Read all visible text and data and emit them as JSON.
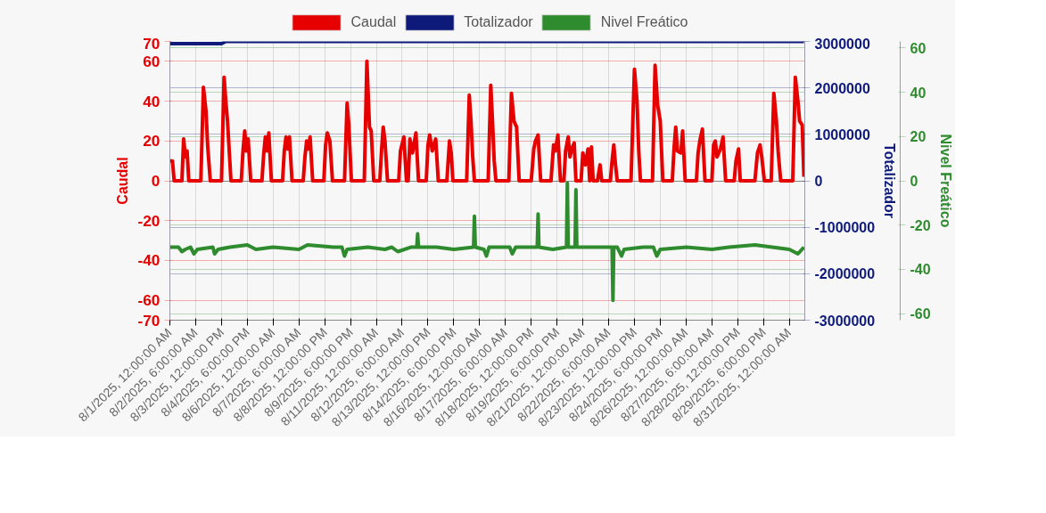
{
  "chart_data": {
    "type": "line",
    "legend": "top",
    "grid": true,
    "marker": "none",
    "line_style": "solid",
    "ylabel": "Caudal",
    "y2label": "Totalizador",
    "y3label": "Nivel Freático",
    "xlim": [
      "2025-08-01T00:00",
      "2025-08-31T18:00"
    ],
    "xticks": [
      {
        "value": "2025-08-01T00:00",
        "label": "8/1/2025, 12:00:00 AM"
      },
      {
        "value": "2025-08-02T06:00",
        "label": "8/2/2025, 6:00:00 AM"
      },
      {
        "value": "2025-08-03T12:00",
        "label": "8/3/2025, 12:00:00 PM"
      },
      {
        "value": "2025-08-04T18:00",
        "label": "8/4/2025, 6:00:00 PM"
      },
      {
        "value": "2025-08-06T00:00",
        "label": "8/6/2025, 12:00:00 AM"
      },
      {
        "value": "2025-08-07T06:00",
        "label": "8/7/2025, 6:00:00 AM"
      },
      {
        "value": "2025-08-08T12:00",
        "label": "8/8/2025, 12:00:00 PM"
      },
      {
        "value": "2025-08-09T18:00",
        "label": "8/9/2025, 6:00:00 PM"
      },
      {
        "value": "2025-08-11T00:00",
        "label": "8/11/2025, 12:00:00 AM"
      },
      {
        "value": "2025-08-12T06:00",
        "label": "8/12/2025, 6:00:00 AM"
      },
      {
        "value": "2025-08-13T12:00",
        "label": "8/13/2025, 12:00:00 PM"
      },
      {
        "value": "2025-08-14T18:00",
        "label": "8/14/2025, 6:00:00 PM"
      },
      {
        "value": "2025-08-16T00:00",
        "label": "8/16/2025, 12:00:00 AM"
      },
      {
        "value": "2025-08-17T06:00",
        "label": "8/17/2025, 6:00:00 AM"
      },
      {
        "value": "2025-08-18T12:00",
        "label": "8/18/2025, 12:00:00 PM"
      },
      {
        "value": "2025-08-19T18:00",
        "label": "8/19/2025, 6:00:00 PM"
      },
      {
        "value": "2025-08-21T00:00",
        "label": "8/21/2025, 12:00:00 AM"
      },
      {
        "value": "2025-08-22T06:00",
        "label": "8/22/2025, 6:00:00 AM"
      },
      {
        "value": "2025-08-23T12:00",
        "label": "8/23/2025, 12:00:00 PM"
      },
      {
        "value": "2025-08-24T18:00",
        "label": "8/24/2025, 6:00:00 PM"
      },
      {
        "value": "2025-08-26T00:00",
        "label": "8/26/2025, 12:00:00 AM"
      },
      {
        "value": "2025-08-27T06:00",
        "label": "8/27/2025, 6:00:00 AM"
      },
      {
        "value": "2025-08-28T12:00",
        "label": "8/28/2025, 12:00:00 PM"
      },
      {
        "value": "2025-08-29T18:00",
        "label": "8/29/2025, 6:00:00 PM"
      },
      {
        "value": "2025-08-31T00:00",
        "label": "8/31/2025, 12:00:00 AM"
      }
    ],
    "ylim": [
      -70,
      70
    ],
    "yticks": [
      -70,
      -60,
      -40,
      -20,
      0,
      20,
      40,
      60,
      70
    ],
    "y2lim": [
      -3000000,
      3000000
    ],
    "y2ticks": [
      -3000000,
      -2000000,
      -1000000,
      0,
      1000000,
      2000000,
      3000000
    ],
    "y3lim": [
      -63,
      63
    ],
    "y3ticks": [
      -60,
      -40,
      -20,
      0,
      20,
      40,
      60
    ],
    "series": [
      {
        "name": "Caudal",
        "color": "#e60000",
        "axis": "y",
        "x": [
          "2025-08-01T00:00",
          "2025-08-01T03:00",
          "2025-08-01T05:00",
          "2025-08-01T14:00",
          "2025-08-01T16:00",
          "2025-08-01T18:00",
          "2025-08-01T20:00",
          "2025-08-01T22:00",
          "2025-08-02T12:00",
          "2025-08-02T15:00",
          "2025-08-02T18:00",
          "2025-08-02T20:00",
          "2025-08-02T23:00",
          "2025-08-03T12:00",
          "2025-08-03T15:00",
          "2025-08-03T17:00",
          "2025-08-03T19:00",
          "2025-08-03T23:00",
          "2025-08-04T11:00",
          "2025-08-04T13:00",
          "2025-08-04T15:00",
          "2025-08-04T17:00",
          "2025-08-04T19:00",
          "2025-08-04T22:00",
          "2025-08-05T11:00",
          "2025-08-05T13:00",
          "2025-08-05T15:00",
          "2025-08-05T17:00",
          "2025-08-05T19:00",
          "2025-08-05T22:00",
          "2025-08-06T11:00",
          "2025-08-06T13:00",
          "2025-08-06T15:00",
          "2025-08-06T17:00",
          "2025-08-06T19:00",
          "2025-08-06T22:00",
          "2025-08-07T11:00",
          "2025-08-07T13:00",
          "2025-08-07T15:00",
          "2025-08-07T17:00",
          "2025-08-07T19:00",
          "2025-08-07T22:00",
          "2025-08-08T11:00",
          "2025-08-08T13:00",
          "2025-08-08T15:00",
          "2025-08-08T18:00",
          "2025-08-08T21:00",
          "2025-08-09T11:00",
          "2025-08-09T14:00",
          "2025-08-09T16:00",
          "2025-08-09T19:00",
          "2025-08-10T10:00",
          "2025-08-10T13:00",
          "2025-08-10T16:00",
          "2025-08-10T18:00",
          "2025-08-10T21:00",
          "2025-08-11T04:00",
          "2025-08-11T06:00",
          "2025-08-11T08:00",
          "2025-08-11T10:00",
          "2025-08-11T13:00",
          "2025-08-12T02:00",
          "2025-08-12T04:00",
          "2025-08-12T08:00",
          "2025-08-12T11:00",
          "2025-08-12T13:00",
          "2025-08-12T15:00",
          "2025-08-12T18:00",
          "2025-08-12T22:00",
          "2025-08-13T01:00",
          "2025-08-13T10:00",
          "2025-08-13T12:00",
          "2025-08-13T14:00",
          "2025-08-13T17:00",
          "2025-08-13T21:00",
          "2025-08-14T00:00",
          "2025-08-14T10:00",
          "2025-08-14T13:00",
          "2025-08-14T15:00",
          "2025-08-14T17:00",
          "2025-08-15T09:00",
          "2025-08-15T12:00",
          "2025-08-15T14:00",
          "2025-08-15T16:00",
          "2025-08-15T18:00",
          "2025-08-16T10:00",
          "2025-08-16T13:00",
          "2025-08-16T15:00",
          "2025-08-16T17:00",
          "2025-08-16T19:00",
          "2025-08-17T10:00",
          "2025-08-17T13:00",
          "2025-08-17T16:00",
          "2025-08-17T19:00",
          "2025-08-17T22:00",
          "2025-08-18T12:00",
          "2025-08-18T15:00",
          "2025-08-18T17:00",
          "2025-08-18T20:00",
          "2025-08-18T23:00",
          "2025-08-19T11:00",
          "2025-08-19T14:00",
          "2025-08-19T16:00",
          "2025-08-19T19:00",
          "2025-08-19T22:00",
          "2025-08-20T02:00",
          "2025-08-20T04:00",
          "2025-08-20T07:00",
          "2025-08-20T09:00",
          "2025-08-20T12:00",
          "2025-08-20T14:00",
          "2025-08-20T16:00",
          "2025-08-20T22:00",
          "2025-08-21T00:00",
          "2025-08-21T03:00",
          "2025-08-21T06:00",
          "2025-08-21T08:00",
          "2025-08-21T10:00",
          "2025-08-21T12:00",
          "2025-08-21T17:00",
          "2025-08-21T20:00",
          "2025-08-21T22:00",
          "2025-08-22T08:00",
          "2025-08-22T10:00",
          "2025-08-22T12:00",
          "2025-08-22T14:00",
          "2025-08-22T16:00",
          "2025-08-23T08:00",
          "2025-08-23T12:00",
          "2025-08-23T15:00",
          "2025-08-23T17:00",
          "2025-08-23T19:00",
          "2025-08-24T09:00",
          "2025-08-24T12:00",
          "2025-08-24T15:00",
          "2025-08-24T18:00",
          "2025-08-24T21:00",
          "2025-08-25T08:00",
          "2025-08-25T10:00",
          "2025-08-25T12:00",
          "2025-08-25T14:00",
          "2025-08-25T18:00",
          "2025-08-25T20:00",
          "2025-08-25T23:00",
          "2025-08-26T12:00",
          "2025-08-26T14:00",
          "2025-08-26T16:00",
          "2025-08-26T19:00",
          "2025-08-26T22:00",
          "2025-08-27T06:00",
          "2025-08-27T08:00",
          "2025-08-27T10:00",
          "2025-08-27T12:00",
          "2025-08-27T16:00",
          "2025-08-27T19:00",
          "2025-08-27T22:00",
          "2025-08-28T08:00",
          "2025-08-28T10:00",
          "2025-08-28T13:00",
          "2025-08-28T15:00",
          "2025-08-29T08:00",
          "2025-08-29T11:00",
          "2025-08-29T14:00",
          "2025-08-29T16:00",
          "2025-08-29T19:00",
          "2025-08-30T03:00",
          "2025-08-30T06:00",
          "2025-08-30T09:00",
          "2025-08-30T11:00",
          "2025-08-30T14:00",
          "2025-08-31T04:00",
          "2025-08-31T07:00",
          "2025-08-31T10:00",
          "2025-08-31T12:00",
          "2025-08-31T15:00",
          "2025-08-31T17:00"
        ],
        "values": [
          10,
          10,
          0,
          0,
          21,
          12,
          15,
          0,
          0,
          47,
          35,
          17,
          0,
          0,
          52,
          40,
          30,
          0,
          0,
          15,
          25,
          15,
          21,
          0,
          0,
          13,
          22,
          15,
          24,
          0,
          0,
          15,
          22,
          16,
          22,
          0,
          0,
          12,
          20,
          16,
          22,
          0,
          0,
          18,
          24,
          20,
          0,
          0,
          39,
          28,
          0,
          0,
          60,
          27,
          25,
          0,
          0,
          15,
          27,
          20,
          0,
          0,
          15,
          22,
          0,
          0,
          21,
          14,
          24,
          0,
          0,
          18,
          23,
          15,
          21,
          0,
          0,
          20,
          14,
          0,
          0,
          43,
          30,
          12,
          0,
          0,
          48,
          30,
          10,
          0,
          0,
          44,
          30,
          27,
          0,
          0,
          16,
          20,
          23,
          0,
          0,
          18,
          15,
          23,
          0,
          0,
          15,
          22,
          12,
          17,
          19,
          0,
          0,
          14,
          8,
          16,
          0,
          17,
          0,
          0,
          8,
          0,
          0,
          10,
          18,
          8,
          0,
          0,
          56,
          40,
          15,
          0,
          0,
          58,
          38,
          30,
          0,
          0,
          16,
          27,
          15,
          14,
          25,
          0,
          0,
          14,
          20,
          26,
          0,
          0,
          18,
          20,
          12,
          16,
          22,
          0,
          0,
          10,
          16,
          0,
          0,
          14,
          18,
          12,
          0,
          0,
          44,
          30,
          15,
          0,
          0,
          52,
          40,
          30,
          28,
          2
        ]
      },
      {
        "name": "Totalizador",
        "color": "#0d1a7a",
        "axis": "y2",
        "x": [
          "2025-08-01T00:00",
          "2025-08-03T12:00",
          "2025-08-03T17:00",
          "2025-08-31T17:00"
        ],
        "values": [
          2950000,
          2950000,
          3000000,
          3000000
        ]
      },
      {
        "name": "Nivel Freático",
        "color": "#2e8b2e",
        "axis": "y3",
        "x": [
          "2025-08-01T00:00",
          "2025-08-01T10:00",
          "2025-08-01T14:00",
          "2025-08-01T18:00",
          "2025-08-02T00:00",
          "2025-08-02T04:00",
          "2025-08-02T08:00",
          "2025-08-03T02:00",
          "2025-08-03T04:00",
          "2025-08-03T08:00",
          "2025-08-03T22:00",
          "2025-08-04T18:00",
          "2025-08-05T04:00",
          "2025-08-06T00:00",
          "2025-08-07T06:00",
          "2025-08-07T16:00",
          "2025-08-08T22:00",
          "2025-08-09T08:00",
          "2025-08-09T11:00",
          "2025-08-09T14:00",
          "2025-08-10T14:00",
          "2025-08-11T10:00",
          "2025-08-11T18:00",
          "2025-08-12T01:00",
          "2025-08-12T16:00",
          "2025-08-12T23:00",
          "2025-08-13T00:00",
          "2025-08-13T01:00",
          "2025-08-13T22:00",
          "2025-08-14T18:00",
          "2025-08-15T17:00",
          "2025-08-15T18:00",
          "2025-08-15T19:00",
          "2025-08-16T05:00",
          "2025-08-16T08:00",
          "2025-08-16T11:00",
          "2025-08-17T11:00",
          "2025-08-17T14:00",
          "2025-08-17T18:00",
          "2025-08-18T19:00",
          "2025-08-18T20:00",
          "2025-08-18T21:00",
          "2025-08-19T13:00",
          "2025-08-20T05:00",
          "2025-08-20T06:00",
          "2025-08-20T07:00",
          "2025-08-20T15:00",
          "2025-08-20T16:00",
          "2025-08-20T17:00",
          "2025-08-21T00:00",
          "2025-08-22T01:00",
          "2025-08-22T10:00",
          "2025-08-22T11:00",
          "2025-08-22T12:00",
          "2025-08-22T16:00",
          "2025-08-22T21:00",
          "2025-08-23T00:00",
          "2025-08-23T22:00",
          "2025-08-24T10:00",
          "2025-08-24T14:00",
          "2025-08-24T18:00",
          "2025-08-26T00:00",
          "2025-08-27T06:00",
          "2025-08-28T02:00",
          "2025-08-29T08:00",
          "2025-08-30T04:00",
          "2025-08-31T00:00",
          "2025-08-31T10:00",
          "2025-08-31T17:00"
        ],
        "values": [
          -30,
          -30,
          -32,
          -31,
          -30,
          -33,
          -31,
          -30,
          -33,
          -31,
          -30,
          -29,
          -31,
          -30,
          -31,
          -29,
          -30,
          -30,
          -34,
          -31,
          -30,
          -31,
          -30,
          -32,
          -30,
          -30,
          -24,
          -30,
          -30,
          -31,
          -30,
          -16,
          -30,
          -31,
          -34,
          -30,
          -30,
          -33,
          -30,
          -30,
          -15,
          -30,
          -31,
          -30,
          -1,
          -30,
          -30,
          -4,
          -30,
          -30,
          -30,
          -30,
          -54,
          -30,
          -30,
          -34,
          -31,
          -30,
          -30,
          -34,
          -31,
          -30,
          -31,
          -30,
          -29,
          -30,
          -31,
          -33,
          -30
        ]
      }
    ]
  }
}
